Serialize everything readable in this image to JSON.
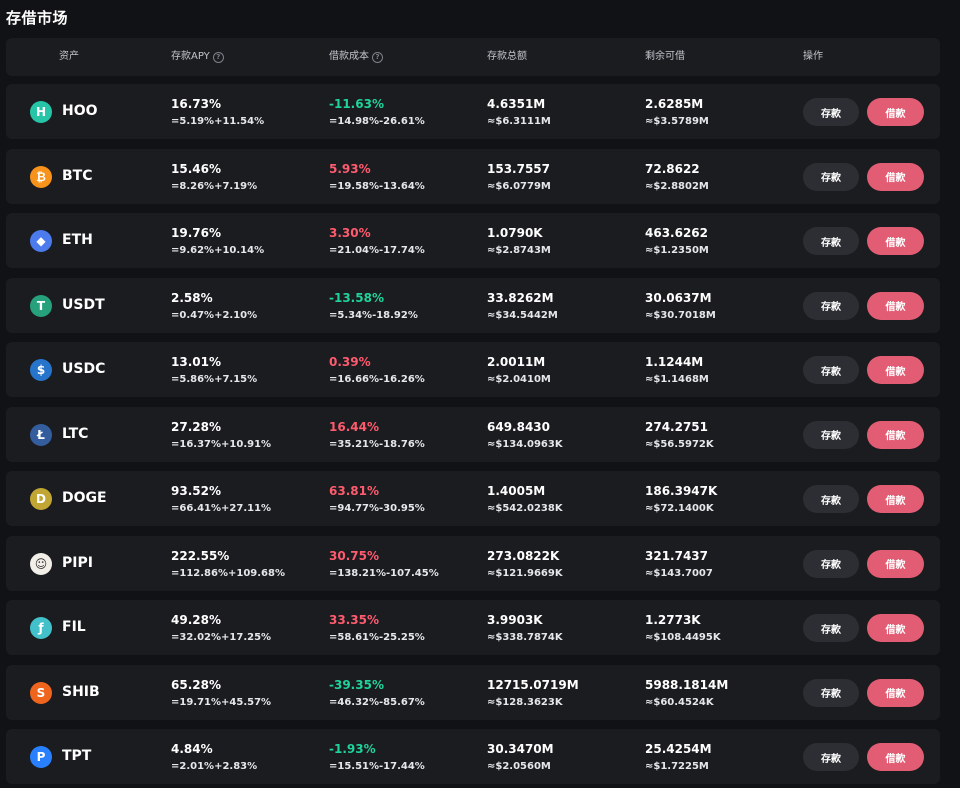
{
  "title": "存借市场",
  "header": {
    "asset": "资产",
    "apy": "存款APY",
    "cost": "借款成本",
    "total": "存款总额",
    "remaining": "剩余可借",
    "action": "操作"
  },
  "buttons": {
    "deposit": "存款",
    "borrow": "借款"
  },
  "rows": [
    {
      "name": "HOO",
      "icon": "H",
      "icon_color": "#27c5a8",
      "apy": "16.73%",
      "apy_sub": "=5.19%+11.54%",
      "cost": "-11.63%",
      "cost_dir": "neg",
      "cost_sub": "=14.98%-26.61%",
      "total": "4.6351M",
      "total_sub": "≈$6.3111M",
      "remaining": "2.6285M",
      "remaining_sub": "≈$3.5789M"
    },
    {
      "name": "BTC",
      "icon": "₿",
      "icon_color": "#f7931a",
      "apy": "15.46%",
      "apy_sub": "=8.26%+7.19%",
      "cost": "5.93%",
      "cost_dir": "pos",
      "cost_sub": "=19.58%-13.64%",
      "total": "153.7557",
      "total_sub": "≈$6.0779M",
      "remaining": "72.8622",
      "remaining_sub": "≈$2.8802M"
    },
    {
      "name": "ETH",
      "icon": "◆",
      "icon_color": "#4b7bec",
      "apy": "19.76%",
      "apy_sub": "=9.62%+10.14%",
      "cost": "3.30%",
      "cost_dir": "pos",
      "cost_sub": "=21.04%-17.74%",
      "total": "1.0790K",
      "total_sub": "≈$2.8743M",
      "remaining": "463.6262",
      "remaining_sub": "≈$1.2350M"
    },
    {
      "name": "USDT",
      "icon": "T",
      "icon_color": "#26a17b",
      "apy": "2.58%",
      "apy_sub": "=0.47%+2.10%",
      "cost": "-13.58%",
      "cost_dir": "neg",
      "cost_sub": "=5.34%-18.92%",
      "total": "33.8262M",
      "total_sub": "≈$34.5442M",
      "remaining": "30.0637M",
      "remaining_sub": "≈$30.7018M"
    },
    {
      "name": "USDC",
      "icon": "$",
      "icon_color": "#2775ca",
      "apy": "13.01%",
      "apy_sub": "=5.86%+7.15%",
      "cost": "0.39%",
      "cost_dir": "pos",
      "cost_sub": "=16.66%-16.26%",
      "total": "2.0011M",
      "total_sub": "≈$2.0410M",
      "remaining": "1.1244M",
      "remaining_sub": "≈$1.1468M"
    },
    {
      "name": "LTC",
      "icon": "Ł",
      "icon_color": "#345d9d",
      "apy": "27.28%",
      "apy_sub": "=16.37%+10.91%",
      "cost": "16.44%",
      "cost_dir": "pos",
      "cost_sub": "=35.21%-18.76%",
      "total": "649.8430",
      "total_sub": "≈$134.0963K",
      "remaining": "274.2751",
      "remaining_sub": "≈$56.5972K"
    },
    {
      "name": "DOGE",
      "icon": "D",
      "icon_color": "#c2a633",
      "apy": "93.52%",
      "apy_sub": "=66.41%+27.11%",
      "cost": "63.81%",
      "cost_dir": "pos",
      "cost_sub": "=94.77%-30.95%",
      "total": "1.4005M",
      "total_sub": "≈$542.0238K",
      "remaining": "186.3947K",
      "remaining_sub": "≈$72.1400K"
    },
    {
      "name": "PIPI",
      "icon": "☺",
      "icon_color": "#f2efe9",
      "apy": "222.55%",
      "apy_sub": "=112.86%+109.68%",
      "cost": "30.75%",
      "cost_dir": "pos",
      "cost_sub": "=138.21%-107.45%",
      "total": "273.0822K",
      "total_sub": "≈$121.9669K",
      "remaining": "321.7437",
      "remaining_sub": "≈$143.7007"
    },
    {
      "name": "FIL",
      "icon": "ƒ",
      "icon_color": "#42c1ca",
      "apy": "49.28%",
      "apy_sub": "=32.02%+17.25%",
      "cost": "33.35%",
      "cost_dir": "pos",
      "cost_sub": "=58.61%-25.25%",
      "total": "3.9903K",
      "total_sub": "≈$338.7874K",
      "remaining": "1.2773K",
      "remaining_sub": "≈$108.4495K"
    },
    {
      "name": "SHIB",
      "icon": "S",
      "icon_color": "#f0651d",
      "apy": "65.28%",
      "apy_sub": "=19.71%+45.57%",
      "cost": "-39.35%",
      "cost_dir": "neg",
      "cost_sub": "=46.32%-85.67%",
      "total": "12715.0719M",
      "total_sub": "≈$128.3623K",
      "remaining": "5988.1814M",
      "remaining_sub": "≈$60.4524K"
    },
    {
      "name": "TPT",
      "icon": "P",
      "icon_color": "#2980fe",
      "apy": "4.84%",
      "apy_sub": "=2.01%+2.83%",
      "cost": "-1.93%",
      "cost_dir": "neg",
      "cost_sub": "=15.51%-17.44%",
      "total": "30.3470M",
      "total_sub": "≈$2.0560M",
      "remaining": "25.4254M",
      "remaining_sub": "≈$1.7225M"
    }
  ]
}
